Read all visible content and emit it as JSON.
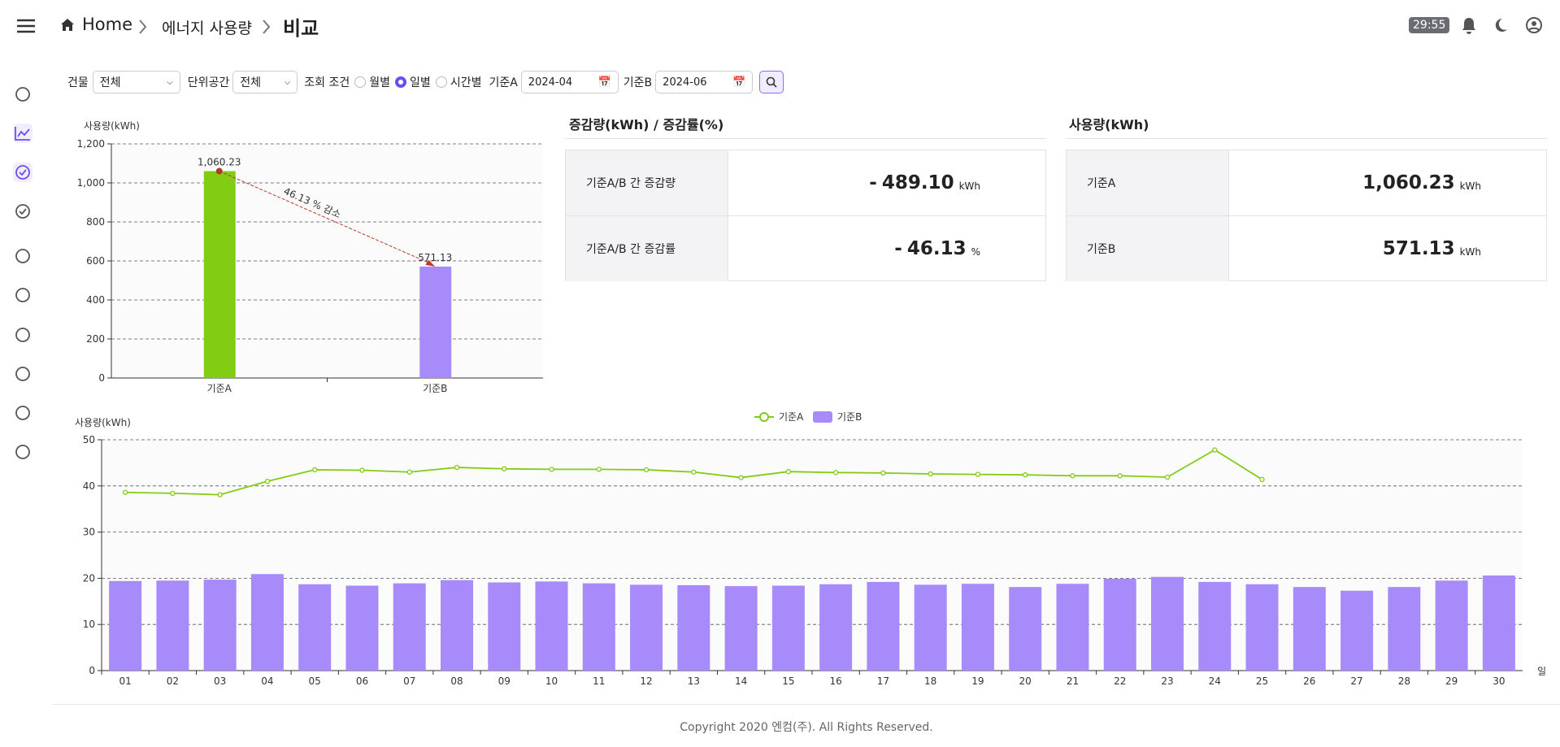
{
  "header": {
    "breadcrumb": [
      "Home",
      "에너지 사용량",
      "비교"
    ],
    "timer": "29:55"
  },
  "filters": {
    "building_label": "건물",
    "building_value": "전체",
    "space_label": "단위공간",
    "space_value": "전체",
    "condition_label": "조회 조건",
    "condition_options": [
      "월별",
      "일별",
      "시간별"
    ],
    "condition_selected": 1,
    "a_label": "기준A",
    "a_value": "2024-04",
    "b_label": "기준B",
    "b_value": "2024-06"
  },
  "chart_data": [
    {
      "type": "bar",
      "y_label": "사용량(kWh)",
      "categories": [
        "기준A",
        "기준B"
      ],
      "values": [
        1060.23,
        571.13
      ],
      "value_labels": [
        "1,060.23",
        "571.13"
      ],
      "colors": [
        "#82cc14",
        "#a78bfa"
      ],
      "annotation": "46.13 % 감소",
      "ylim": [
        0,
        1200
      ],
      "yticks": [
        0,
        200,
        400,
        600,
        800,
        {
          "value": 1000,
          "label": "1,000"
        },
        {
          "value": 1200,
          "label": "1,200"
        }
      ],
      "grid": true
    },
    {
      "type": "combo",
      "y_label": "사용량(kWh)",
      "x_label": "일",
      "categories": [
        "01",
        "02",
        "03",
        "04",
        "05",
        "06",
        "07",
        "08",
        "09",
        "10",
        "11",
        "12",
        "13",
        "14",
        "15",
        "16",
        "17",
        "18",
        "19",
        "20",
        "21",
        "22",
        "23",
        "24",
        "25",
        "26",
        "27",
        "28",
        "29",
        "30"
      ],
      "series": [
        {
          "name": "기준A",
          "type": "line",
          "color": "#82cc14",
          "values": [
            38.6,
            38.4,
            38.1,
            41.0,
            43.5,
            43.4,
            43.0,
            44.0,
            43.7,
            43.6,
            43.6,
            43.5,
            43.0,
            41.8,
            43.1,
            42.9,
            42.8,
            42.6,
            42.5,
            42.4,
            42.2,
            42.2,
            41.9,
            47.8,
            41.4,
            null,
            null,
            null,
            null,
            null
          ]
        },
        {
          "name": "기준B",
          "type": "bar",
          "color": "#a78bfa",
          "values": [
            19.4,
            19.5,
            19.7,
            20.9,
            18.7,
            18.4,
            18.9,
            19.6,
            19.1,
            19.3,
            18.9,
            18.6,
            18.5,
            18.3,
            18.4,
            18.7,
            19.2,
            18.6,
            18.8,
            18.1,
            18.8,
            19.9,
            20.3,
            19.2,
            18.7,
            18.1,
            17.3,
            18.1,
            19.5,
            20.6
          ]
        }
      ],
      "ylim": [
        0,
        50
      ],
      "yticks": [
        0,
        10,
        20,
        30,
        40,
        50
      ],
      "grid": true
    }
  ],
  "change_panel": {
    "title": "증감량(kWh) / 증감률(%)",
    "rows": [
      {
        "label": "기준A/B 간 증감량",
        "sign": "-",
        "value": "489.10",
        "unit": "kWh"
      },
      {
        "label": "기준A/B 간 증감률",
        "sign": "-",
        "value": "46.13",
        "unit": "%"
      }
    ]
  },
  "usage_panel": {
    "title": "사용량(kWh)",
    "rows": [
      {
        "label": "기준A",
        "value": "1,060.23",
        "unit": "kWh"
      },
      {
        "label": "기준B",
        "value": "571.13",
        "unit": "kWh"
      }
    ]
  },
  "footer": "Copyright 2020 엔컴(주). All Rights Reserved."
}
